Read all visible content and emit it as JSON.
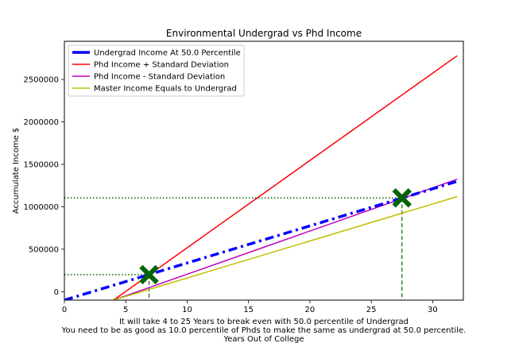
{
  "chart_data": {
    "type": "line",
    "title": "Environmental Undergrad vs Phd Income",
    "xlabel": "Years Out of College",
    "ylabel": "Accumulate Income $",
    "captions": [
      "It will take 4 to 25 Years to break even with 50.0 percentile of Undergrad",
      "You need to be as good as 10.0 percentile of Phds to make the same as undergrad at 50.0 percentile."
    ],
    "xlim": [
      0,
      32.5
    ],
    "ylim": [
      -100000,
      2950000
    ],
    "xticks": [
      0,
      5,
      10,
      15,
      20,
      25,
      30
    ],
    "yticks": [
      0,
      500000,
      1000000,
      1500000,
      2000000,
      2500000
    ],
    "grid": false,
    "legend_position": "upper-left",
    "series": [
      {
        "name": "Undergrad Income At 50.0 Percentile",
        "color": "#0000ff",
        "style": "dashdot",
        "x": [
          0,
          32
        ],
        "y": [
          -100000,
          1300000
        ]
      },
      {
        "name": "Phd Income + Standard Deviation",
        "color": "#ff0000",
        "style": "solid",
        "x": [
          4,
          32
        ],
        "y": [
          -100000,
          2780000
        ]
      },
      {
        "name": "Phd Income - Standard Deviation",
        "color": "#bf00bf",
        "style": "solid",
        "x": [
          4,
          32
        ],
        "y": [
          -100000,
          1325000
        ]
      },
      {
        "name": "Master Income Equals to Undergrad",
        "color": "#bfbf00",
        "style": "solid",
        "x": [
          4,
          32
        ],
        "y": [
          -100000,
          1120000
        ]
      }
    ],
    "markers": [
      {
        "x": 6.9,
        "y": 200000,
        "color": "#006400"
      },
      {
        "x": 27.5,
        "y": 1105000,
        "color": "#006400"
      }
    ]
  }
}
